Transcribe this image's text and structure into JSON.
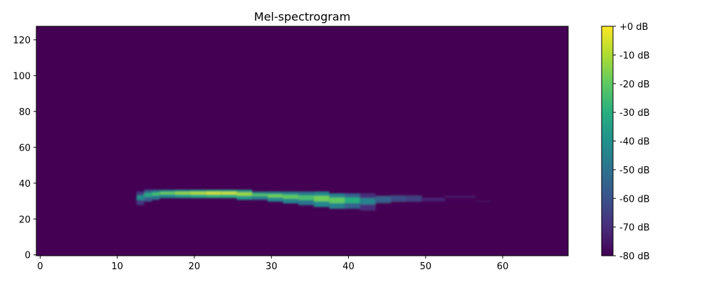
{
  "chart_data": {
    "type": "heatmap",
    "title": "Mel-spectrogram",
    "xlabel": "",
    "ylabel": "",
    "xlim": [
      -0.5,
      68.5
    ],
    "ylim": [
      -0.5,
      127.5
    ],
    "x_ticks": [
      0,
      10,
      20,
      30,
      40,
      50,
      60
    ],
    "y_ticks": [
      0,
      20,
      40,
      60,
      80,
      100,
      120
    ],
    "colormap": "viridis",
    "colorbar": {
      "min": -80,
      "max": 0,
      "ticks": [
        0,
        -10,
        -20,
        -30,
        -40,
        -50,
        -60,
        -70,
        -80
      ],
      "tick_labels": [
        "+0 dB",
        "-10 dB",
        "-20 dB",
        "-30 dB",
        "-40 dB",
        "-50 dB",
        "-60 dB",
        "-70 dB",
        "-80 dB"
      ]
    },
    "background_level_db": -80,
    "grid": false,
    "trace": {
      "description_free": true,
      "points": [
        {
          "t": 13,
          "upper_bin": 34,
          "lower_bin": 29,
          "db": -42
        },
        {
          "t": 14,
          "upper_bin": 35,
          "lower_bin": 31,
          "db": -32
        },
        {
          "t": 15,
          "upper_bin": 35,
          "lower_bin": 32,
          "db": -25
        },
        {
          "t": 16,
          "upper_bin": 35,
          "lower_bin": 33,
          "db": -18
        },
        {
          "t": 18,
          "upper_bin": 35,
          "lower_bin": 33,
          "db": -12
        },
        {
          "t": 20,
          "upper_bin": 35,
          "lower_bin": 33,
          "db": -8
        },
        {
          "t": 22,
          "upper_bin": 35,
          "lower_bin": 33,
          "db": -4
        },
        {
          "t": 24,
          "upper_bin": 35,
          "lower_bin": 33,
          "db": -5
        },
        {
          "t": 26,
          "upper_bin": 35,
          "lower_bin": 32,
          "db": -12
        },
        {
          "t": 28,
          "upper_bin": 34,
          "lower_bin": 32,
          "db": -22
        },
        {
          "t": 30,
          "upper_bin": 34,
          "lower_bin": 31,
          "db": -18
        },
        {
          "t": 32,
          "upper_bin": 34,
          "lower_bin": 30,
          "db": -20
        },
        {
          "t": 34,
          "upper_bin": 34,
          "lower_bin": 29,
          "db": -24
        },
        {
          "t": 36,
          "upper_bin": 34,
          "lower_bin": 28,
          "db": -18
        },
        {
          "t": 38,
          "upper_bin": 33,
          "lower_bin": 27,
          "db": -20
        },
        {
          "t": 40,
          "upper_bin": 33,
          "lower_bin": 27,
          "db": -30
        },
        {
          "t": 42,
          "upper_bin": 33,
          "lower_bin": 26,
          "db": -45
        },
        {
          "t": 44,
          "upper_bin": 34,
          "lower_bin": 27,
          "db": -55
        },
        {
          "t": 46,
          "upper_bin": 34,
          "lower_bin": 28,
          "db": -62
        },
        {
          "t": 48,
          "upper_bin": 34,
          "lower_bin": 28,
          "db": -65
        },
        {
          "t": 50,
          "upper_bin": 32,
          "lower_bin": 29,
          "db": -72
        },
        {
          "t": 53,
          "upper_bin": 33,
          "lower_bin": 31,
          "db": -76
        },
        {
          "t": 57,
          "upper_bin": 30,
          "lower_bin": 29,
          "db": -78
        }
      ]
    }
  }
}
